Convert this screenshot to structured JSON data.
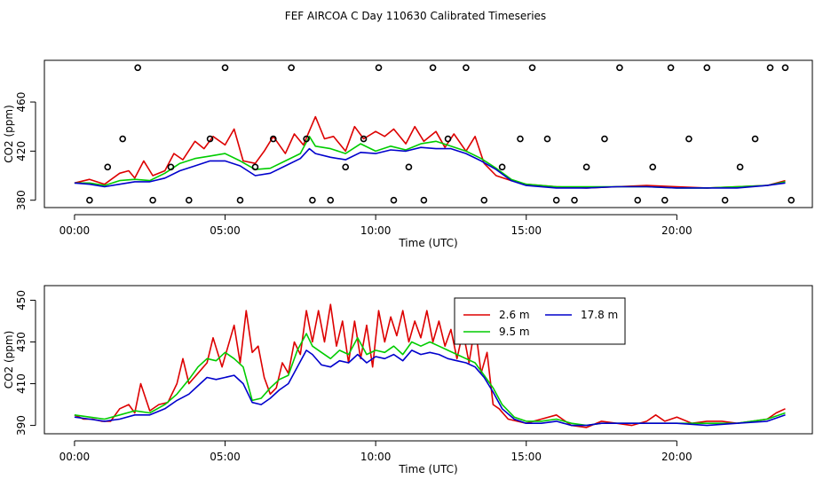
{
  "title": "FEF AIRCOA C  Day 110630  Calibrated Timeseries",
  "colors": {
    "h26": "#dd0000",
    "h95": "#00cc00",
    "h178": "#0000cc",
    "frame": "#000000"
  },
  "chart_data": [
    {
      "type": "line",
      "panel": "top",
      "xlabel": "Time (UTC)",
      "ylabel": "CO2 (ppm)",
      "xlim": [
        -1.0,
        24.5
      ],
      "ylim": [
        374,
        494
      ],
      "xticks": [
        0,
        5,
        10,
        15,
        20
      ],
      "xtick_labels": [
        "00:00",
        "05:00",
        "10:00",
        "15:00",
        "20:00"
      ],
      "yticks": [
        380,
        420,
        460
      ],
      "ytick_labels": [
        "380",
        "420",
        "460"
      ],
      "series": [
        {
          "name": "2.6 m",
          "color_key": "h26",
          "x": [
            0,
            0.5,
            1,
            1.5,
            1.8,
            2.0,
            2.3,
            2.6,
            3.0,
            3.3,
            3.6,
            4.0,
            4.3,
            4.6,
            5.0,
            5.3,
            5.6,
            6.0,
            6.3,
            6.6,
            7.0,
            7.3,
            7.6,
            8.0,
            8.3,
            8.6,
            9.0,
            9.3,
            9.6,
            10.0,
            10.3,
            10.6,
            11.0,
            11.3,
            11.6,
            12.0,
            12.3,
            12.6,
            13.0,
            13.3,
            13.6,
            14.0,
            14.5,
            15.0,
            16.0,
            17.0,
            18.0,
            19.0,
            20.0,
            21.0,
            22.0,
            23.0,
            23.6
          ],
          "y": [
            394,
            397,
            393,
            402,
            404,
            398,
            412,
            400,
            404,
            418,
            413,
            428,
            422,
            432,
            425,
            438,
            412,
            410,
            420,
            432,
            418,
            434,
            425,
            448,
            430,
            432,
            420,
            440,
            430,
            436,
            432,
            438,
            426,
            440,
            428,
            436,
            423,
            434,
            420,
            432,
            410,
            400,
            396,
            393,
            391,
            390,
            391,
            392,
            391,
            390,
            391,
            392,
            396
          ]
        },
        {
          "name": "9.5 m",
          "color_key": "h95",
          "x": [
            0,
            0.5,
            1,
            1.5,
            2.0,
            2.5,
            3.0,
            3.5,
            4.0,
            4.5,
            5.0,
            5.5,
            6.0,
            6.5,
            7.0,
            7.5,
            7.8,
            8.0,
            8.5,
            9.0,
            9.5,
            10.0,
            10.5,
            11.0,
            11.5,
            12.0,
            12.5,
            13.0,
            13.5,
            14.0,
            14.5,
            15.0,
            16.0,
            17.0,
            18.0,
            19.0,
            20.0,
            21.0,
            22.0,
            23.0,
            23.6
          ],
          "y": [
            394,
            394,
            392,
            396,
            397,
            396,
            402,
            410,
            414,
            416,
            418,
            412,
            405,
            406,
            412,
            418,
            432,
            424,
            422,
            418,
            426,
            420,
            424,
            421,
            426,
            428,
            424,
            420,
            414,
            406,
            397,
            393,
            391,
            391,
            391,
            391,
            390,
            390,
            391,
            392,
            395
          ]
        },
        {
          "name": "17.8 m",
          "color_key": "h178",
          "x": [
            0,
            0.5,
            1,
            1.5,
            2.0,
            2.5,
            3.0,
            3.5,
            4.0,
            4.5,
            5.0,
            5.5,
            6.0,
            6.5,
            7.0,
            7.5,
            7.8,
            8.0,
            8.5,
            9.0,
            9.5,
            10.0,
            10.5,
            11.0,
            11.5,
            12.0,
            12.5,
            13.0,
            13.5,
            14.0,
            14.5,
            15.0,
            16.0,
            17.0,
            18.0,
            19.0,
            20.0,
            21.0,
            22.0,
            23.0,
            23.6
          ],
          "y": [
            394,
            393,
            391,
            393,
            395,
            395,
            398,
            404,
            408,
            412,
            412,
            408,
            400,
            402,
            408,
            414,
            422,
            418,
            415,
            413,
            419,
            418,
            421,
            420,
            423,
            422,
            422,
            418,
            412,
            405,
            396,
            392,
            390,
            390,
            391,
            391,
            390,
            390,
            390,
            392,
            394
          ]
        }
      ],
      "points": {
        "marker": "open-circle",
        "x": [
          0.5,
          1.1,
          1.6,
          2.1,
          2.6,
          3.2,
          3.8,
          4.5,
          5.0,
          5.5,
          6.0,
          6.6,
          7.2,
          7.7,
          7.9,
          8.5,
          9.0,
          9.6,
          10.1,
          10.6,
          11.1,
          11.6,
          11.9,
          12.4,
          13.0,
          13.6,
          14.2,
          14.8,
          15.2,
          15.7,
          16.0,
          16.6,
          17.0,
          17.6,
          18.1,
          18.7,
          19.2,
          19.6,
          19.8,
          20.4,
          21.0,
          21.6,
          22.1,
          22.6,
          23.1,
          23.6,
          23.8
        ],
        "y": [
          380,
          407,
          430,
          488,
          380,
          407,
          380,
          430,
          488,
          380,
          407,
          430,
          488,
          430,
          380,
          380,
          407,
          430,
          488,
          380,
          407,
          380,
          488,
          430,
          488,
          380,
          407,
          430,
          488,
          430,
          380,
          380,
          407,
          430,
          488,
          380,
          407,
          380,
          488,
          430,
          488,
          380,
          407,
          430,
          488,
          488,
          380
        ]
      }
    },
    {
      "type": "line",
      "panel": "bottom",
      "xlabel": "Time (UTC)",
      "ylabel": "CO2 (ppm)",
      "xlim": [
        -1.0,
        24.5
      ],
      "ylim": [
        386,
        457
      ],
      "xticks": [
        0,
        5,
        10,
        15,
        20
      ],
      "xtick_labels": [
        "00:00",
        "05:00",
        "10:00",
        "15:00",
        "20:00"
      ],
      "yticks": [
        390,
        410,
        430,
        450
      ],
      "ytick_labels": [
        "390",
        "410",
        "430",
        "450"
      ],
      "legend": {
        "placement": "top-right-inset",
        "entries": [
          "2.6 m",
          "17.8 m",
          "9.5 m"
        ]
      },
      "series": [
        {
          "name": "2.6 m",
          "color_key": "h26",
          "x": [
            0,
            0.3,
            0.6,
            0.9,
            1.2,
            1.5,
            1.8,
            2.0,
            2.2,
            2.5,
            2.8,
            3.1,
            3.4,
            3.6,
            3.8,
            4.1,
            4.4,
            4.6,
            4.9,
            5.1,
            5.3,
            5.5,
            5.7,
            5.9,
            6.1,
            6.3,
            6.5,
            6.7,
            6.9,
            7.1,
            7.3,
            7.5,
            7.7,
            7.9,
            8.1,
            8.3,
            8.5,
            8.7,
            8.9,
            9.1,
            9.3,
            9.5,
            9.7,
            9.9,
            10.1,
            10.3,
            10.5,
            10.7,
            10.9,
            11.1,
            11.3,
            11.5,
            11.7,
            11.9,
            12.1,
            12.3,
            12.5,
            12.7,
            12.9,
            13.1,
            13.3,
            13.5,
            13.7,
            13.9,
            14.1,
            14.4,
            14.7,
            15.0,
            15.5,
            16.0,
            16.5,
            17.0,
            17.5,
            18.0,
            18.5,
            19.0,
            19.3,
            19.6,
            20.0,
            20.5,
            21.0,
            21.5,
            22.0,
            22.5,
            23.0,
            23.3,
            23.6
          ],
          "y": [
            395,
            393,
            393,
            392,
            392,
            398,
            400,
            396,
            410,
            397,
            400,
            401,
            410,
            422,
            410,
            415,
            420,
            432,
            418,
            428,
            438,
            420,
            445,
            425,
            428,
            413,
            405,
            408,
            420,
            415,
            430,
            424,
            445,
            430,
            445,
            430,
            448,
            428,
            440,
            420,
            440,
            422,
            438,
            418,
            445,
            430,
            442,
            433,
            445,
            430,
            440,
            432,
            445,
            430,
            440,
            428,
            436,
            422,
            435,
            420,
            438,
            415,
            425,
            400,
            398,
            393,
            392,
            391,
            393,
            395,
            390,
            389,
            392,
            391,
            390,
            392,
            395,
            392,
            394,
            391,
            392,
            392,
            391,
            392,
            393,
            396,
            398
          ]
        },
        {
          "name": "9.5 m",
          "color_key": "h95",
          "x": [
            0,
            0.5,
            1.0,
            1.5,
            2.0,
            2.5,
            3.0,
            3.4,
            3.8,
            4.1,
            4.4,
            4.7,
            5.0,
            5.3,
            5.6,
            5.9,
            6.2,
            6.5,
            6.8,
            7.1,
            7.4,
            7.7,
            7.9,
            8.2,
            8.5,
            8.8,
            9.1,
            9.4,
            9.7,
            10.0,
            10.3,
            10.6,
            10.9,
            11.2,
            11.5,
            11.8,
            12.1,
            12.4,
            12.7,
            13.0,
            13.3,
            13.6,
            13.9,
            14.2,
            14.6,
            15.0,
            15.5,
            16.0,
            16.5,
            17.0,
            17.5,
            18.0,
            19.0,
            20.0,
            21.0,
            22.0,
            23.0,
            23.6
          ],
          "y": [
            395,
            394,
            393,
            395,
            397,
            396,
            400,
            405,
            412,
            418,
            422,
            421,
            425,
            422,
            418,
            402,
            403,
            408,
            412,
            414,
            426,
            434,
            428,
            425,
            422,
            426,
            424,
            432,
            424,
            426,
            425,
            428,
            424,
            430,
            428,
            430,
            428,
            426,
            424,
            422,
            420,
            414,
            408,
            400,
            394,
            392,
            392,
            393,
            391,
            390,
            391,
            391,
            391,
            391,
            391,
            391,
            393,
            396
          ]
        },
        {
          "name": "17.8 m",
          "color_key": "h178",
          "x": [
            0,
            0.5,
            1.0,
            1.5,
            2.0,
            2.5,
            3.0,
            3.4,
            3.8,
            4.1,
            4.4,
            4.7,
            5.0,
            5.3,
            5.6,
            5.9,
            6.2,
            6.5,
            6.8,
            7.1,
            7.4,
            7.7,
            7.9,
            8.2,
            8.5,
            8.8,
            9.1,
            9.4,
            9.7,
            10.0,
            10.3,
            10.6,
            10.9,
            11.2,
            11.5,
            11.8,
            12.1,
            12.4,
            12.7,
            13.0,
            13.3,
            13.6,
            13.9,
            14.2,
            14.6,
            15.0,
            15.5,
            16.0,
            16.5,
            17.0,
            17.5,
            18.0,
            19.0,
            20.0,
            21.0,
            22.0,
            23.0,
            23.6
          ],
          "y": [
            394,
            393,
            392,
            393,
            395,
            395,
            398,
            402,
            405,
            409,
            413,
            412,
            413,
            414,
            410,
            401,
            400,
            403,
            407,
            410,
            418,
            426,
            424,
            419,
            418,
            421,
            420,
            424,
            420,
            423,
            422,
            424,
            421,
            426,
            424,
            425,
            424,
            422,
            421,
            420,
            418,
            413,
            406,
            398,
            393,
            391,
            391,
            392,
            390,
            390,
            391,
            391,
            391,
            391,
            390,
            391,
            392,
            395
          ]
        }
      ]
    }
  ]
}
